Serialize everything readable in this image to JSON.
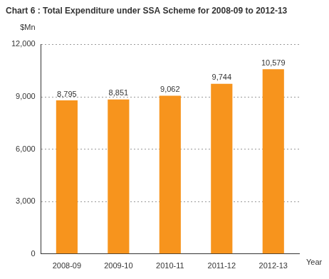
{
  "chart_data": {
    "type": "bar",
    "title": "Chart 6 : Total Expenditure under SSA Scheme for 2008-09 to 2012-13",
    "y_label": "$Mn",
    "x_label": "Year",
    "categories": [
      "2008-09",
      "2009-10",
      "2010-11",
      "2011-12",
      "2012-13"
    ],
    "values": [
      8795,
      8851,
      9062,
      9744,
      10579
    ],
    "value_labels": [
      "8,795",
      "8,851",
      "9,062",
      "9,744",
      "10,579"
    ],
    "data_labels": true,
    "color": "#f7941d",
    "ylim": [
      0,
      12000
    ],
    "yticks": [
      0,
      {
        "value": 3000,
        "label": "3,000"
      },
      {
        "value": 6000,
        "label": "6,000"
      },
      {
        "value": 9000,
        "label": "9,000"
      },
      {
        "value": 12000,
        "label": "12,000"
      }
    ],
    "grid": true
  }
}
